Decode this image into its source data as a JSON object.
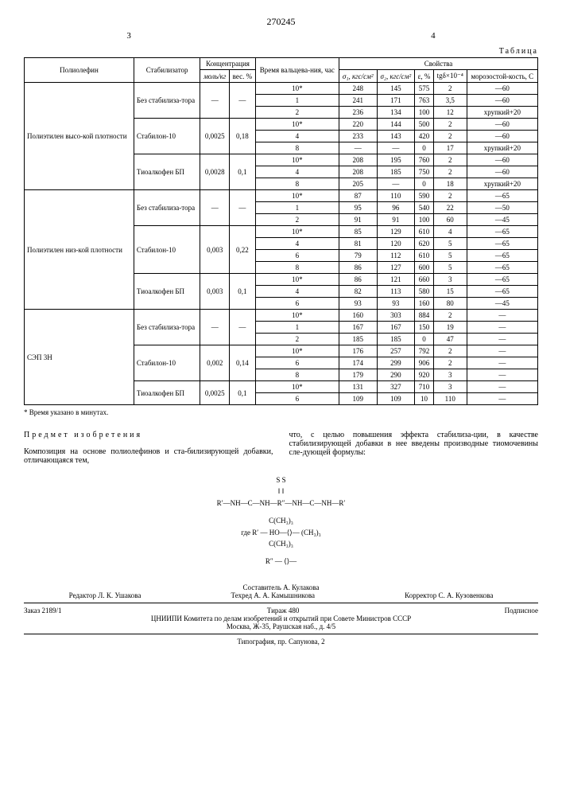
{
  "doc_number": "270245",
  "page_left": "3",
  "page_right": "4",
  "table_label": "Таблица",
  "headers": {
    "polyolefin": "Полиолефин",
    "stabilizer": "Стабилизатор",
    "concentration": "Концентрация",
    "conc_mol": "моль/кг",
    "conc_pct": "вес. %",
    "time": "Время вальцева-ния, час",
    "properties": "Свойства",
    "sigma1": "σ₁, кгс/см²",
    "sigma2": "σ₂, кгс/см²",
    "eps": "ε, %",
    "tgd": "tgδ×10⁻⁴",
    "frost": "морозостой-кость, С"
  },
  "groups": [
    {
      "poly": "Полиэтилен высо-кой плотности",
      "blocks": [
        {
          "stab": "Без стабилиза-тора",
          "mol": "—",
          "pct": "—",
          "rows": [
            {
              "t": "10*",
              "s1": "248",
              "s2": "145",
              "e": "575",
              "tg": "2",
              "f": "—60"
            },
            {
              "t": "1",
              "s1": "241",
              "s2": "171",
              "e": "763",
              "tg": "3,5",
              "f": "—60"
            },
            {
              "t": "2",
              "s1": "236",
              "s2": "134",
              "e": "100",
              "tg": "12",
              "f": "хрупкий+20"
            }
          ]
        },
        {
          "stab": "Стабилон-10",
          "mol": "0,0025",
          "pct": "0,18",
          "rows": [
            {
              "t": "10*",
              "s1": "220",
              "s2": "144",
              "e": "500",
              "tg": "2",
              "f": "—60"
            },
            {
              "t": "4",
              "s1": "233",
              "s2": "143",
              "e": "420",
              "tg": "2",
              "f": "—60"
            },
            {
              "t": "8",
              "s1": "—",
              "s2": "—",
              "e": "0",
              "tg": "17",
              "f": "хрупкий+20"
            }
          ]
        },
        {
          "stab": "Тиоалкофен БП",
          "mol": "0,0028",
          "pct": "0,1",
          "rows": [
            {
              "t": "10*",
              "s1": "208",
              "s2": "195",
              "e": "760",
              "tg": "2",
              "f": "—60"
            },
            {
              "t": "4",
              "s1": "208",
              "s2": "185",
              "e": "750",
              "tg": "2",
              "f": "—60"
            },
            {
              "t": "8",
              "s1": "205",
              "s2": "—",
              "e": "0",
              "tg": "18",
              "f": "хрупкий+20"
            }
          ]
        }
      ]
    },
    {
      "poly": "Полиэтилен низ-кой плотности",
      "blocks": [
        {
          "stab": "Без стабилиза-тора",
          "mol": "—",
          "pct": "—",
          "rows": [
            {
              "t": "10*",
              "s1": "87",
              "s2": "110",
              "e": "590",
              "tg": "2",
              "f": "—65"
            },
            {
              "t": "1",
              "s1": "95",
              "s2": "96",
              "e": "540",
              "tg": "22",
              "f": "—50"
            },
            {
              "t": "2",
              "s1": "91",
              "s2": "91",
              "e": "100",
              "tg": "60",
              "f": "—45"
            }
          ]
        },
        {
          "stab": "Стабилон-10",
          "mol": "0,003",
          "pct": "0,22",
          "rows": [
            {
              "t": "10*",
              "s1": "85",
              "s2": "129",
              "e": "610",
              "tg": "4",
              "f": "—65"
            },
            {
              "t": "4",
              "s1": "81",
              "s2": "120",
              "e": "620",
              "tg": "5",
              "f": "—65"
            },
            {
              "t": "6",
              "s1": "79",
              "s2": "112",
              "e": "610",
              "tg": "5",
              "f": "—65"
            },
            {
              "t": "8",
              "s1": "86",
              "s2": "127",
              "e": "600",
              "tg": "5",
              "f": "—65"
            }
          ]
        },
        {
          "stab": "Тиоалкофен БП",
          "mol": "0,003",
          "pct": "0,1",
          "rows": [
            {
              "t": "10*",
              "s1": "86",
              "s2": "121",
              "e": "660",
              "tg": "3",
              "f": "—65"
            },
            {
              "t": "4",
              "s1": "82",
              "s2": "113",
              "e": "580",
              "tg": "15",
              "f": "—65"
            },
            {
              "t": "6",
              "s1": "93",
              "s2": "93",
              "e": "160",
              "tg": "80",
              "f": "—45"
            }
          ]
        }
      ]
    },
    {
      "poly": "СЭП 3Н",
      "blocks": [
        {
          "stab": "Без стабилиза-тора",
          "mol": "—",
          "pct": "—",
          "rows": [
            {
              "t": "10*",
              "s1": "160",
              "s2": "303",
              "e": "884",
              "tg": "2",
              "f": "—"
            },
            {
              "t": "1",
              "s1": "167",
              "s2": "167",
              "e": "150",
              "tg": "19",
              "f": "—"
            },
            {
              "t": "2",
              "s1": "185",
              "s2": "185",
              "e": "0",
              "tg": "47",
              "f": "—"
            }
          ]
        },
        {
          "stab": "Стабилон-10",
          "mol": "0,002",
          "pct": "0,14",
          "rows": [
            {
              "t": "10*",
              "s1": "176",
              "s2": "257",
              "e": "792",
              "tg": "2",
              "f": "—"
            },
            {
              "t": "6",
              "s1": "174",
              "s2": "299",
              "e": "906",
              "tg": "2",
              "f": "—"
            },
            {
              "t": "8",
              "s1": "179",
              "s2": "290",
              "e": "920",
              "tg": "3",
              "f": "—"
            }
          ]
        },
        {
          "stab": "Тиоалкофен БП",
          "mol": "0,0025",
          "pct": "0,1",
          "rows": [
            {
              "t": "10*",
              "s1": "131",
              "s2": "327",
              "e": "710",
              "tg": "3",
              "f": "—"
            },
            {
              "t": "6",
              "s1": "109",
              "s2": "109",
              "e": "10",
              "tg": "110",
              "f": "—"
            }
          ]
        }
      ]
    }
  ],
  "footnote": "* Время указано в минутах.",
  "subject": "Предмет изобретения",
  "body_left": "Композиция на основе полиолефинов и ста-билизирующей добавки, отличающаяся тем,",
  "body_right": "что, с целью повышения эффекта стабилиза-ции, в качестве стабилизирующей добавки в нее введены производные тиомочевины сле-дующей формулы:",
  "formula": {
    "l1": "R′—NH—C—NH—R″—NH—C—NH—R′",
    "l1s": "‖                              ‖",
    "l1ss": "S                              S",
    "l2": "где R′ — HO—⟨⟩—   (CH₃)₃",
    "l2b": "C(CH₃)₃",
    "l2t": "C(CH₃)₃",
    "l3": "R″ — ⟨⟩—"
  },
  "credits": {
    "compiler": "Составитель А. Кулакова",
    "editor": "Редактор Л. К. Ушакова",
    "techred": "Техред А. А. Камышникова",
    "corrector": "Корректор С. А. Кузовенкова"
  },
  "pub": {
    "order": "Заказ 2189/1",
    "tirage": "Тираж 480",
    "sub": "Подписное",
    "org": "ЦНИИПИ Комитета по делам изобретений и открытий при Совете Министров СССР",
    "addr": "Москва, Ж-35, Раушская наб., д. 4/5",
    "typo": "Типография, пр. Сапунова, 2"
  }
}
